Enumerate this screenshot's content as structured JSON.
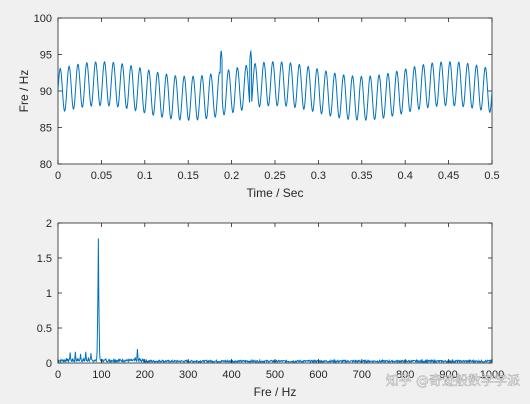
{
  "watermark": "知乎 @奇迹般数学学派",
  "colors": {
    "line": "#0072bd",
    "axes": "#262626",
    "bg": "#ffffff",
    "figure": "#f0f0f0"
  },
  "chart_data": [
    {
      "type": "line",
      "title": "",
      "xlabel": "Time / Sec",
      "ylabel": "Fre / Hz",
      "xlim": [
        0,
        0.5
      ],
      "ylim": [
        80,
        100
      ],
      "xticks": [
        "0",
        "0.05",
        "0.1",
        "0.15",
        "0.2",
        "0.25",
        "0.3",
        "0.35",
        "0.4",
        "0.45",
        "0.5"
      ],
      "yticks": [
        "80",
        "85",
        "90",
        "95",
        "100"
      ],
      "series": [
        {
          "signal": {
            "center": 90,
            "amplitude_a": 3,
            "freq_a_hz": 98,
            "amplitude_b": 1,
            "freq_b_hz": 5,
            "clip": [
              88,
              94
            ],
            "spikes": [
              [
                0.188,
                95.7
              ],
              [
                0.222,
                95.6
              ]
            ]
          }
        }
      ],
      "grid": false
    },
    {
      "type": "line",
      "title": "",
      "xlabel": "Fre / Hz",
      "ylabel": "",
      "xlim": [
        0,
        1000
      ],
      "ylim": [
        0,
        2
      ],
      "xticks": [
        "0",
        "100",
        "200",
        "300",
        "400",
        "500",
        "600",
        "700",
        "800",
        "900",
        "1000"
      ],
      "yticks": [
        "0",
        "0.5",
        "1",
        "1.5",
        "2"
      ],
      "series": [
        {
          "peaks": [
            [
              20,
              0.07
            ],
            [
              28,
              0.15
            ],
            [
              34,
              0.06
            ],
            [
              40,
              0.16
            ],
            [
              46,
              0.07
            ],
            [
              52,
              0.13
            ],
            [
              58,
              0.06
            ],
            [
              64,
              0.16
            ],
            [
              70,
              0.08
            ],
            [
              76,
              0.14
            ],
            [
              84,
              0.04
            ],
            [
              91,
              0.32
            ],
            [
              92,
              1.05
            ],
            [
              93,
              1.78
            ],
            [
              94,
              0.95
            ],
            [
              95,
              0.28
            ],
            [
              110,
              0.06
            ],
            [
              130,
              0.04
            ],
            [
              150,
              0.04
            ],
            [
              178,
              0.08
            ],
            [
              183,
              0.2
            ],
            [
              188,
              0.07
            ],
            [
              240,
              0.04
            ],
            [
              320,
              0.035
            ],
            [
              420,
              0.03
            ],
            [
              560,
              0.025
            ]
          ],
          "noise_floor": 0.03
        }
      ],
      "grid": false
    }
  ]
}
